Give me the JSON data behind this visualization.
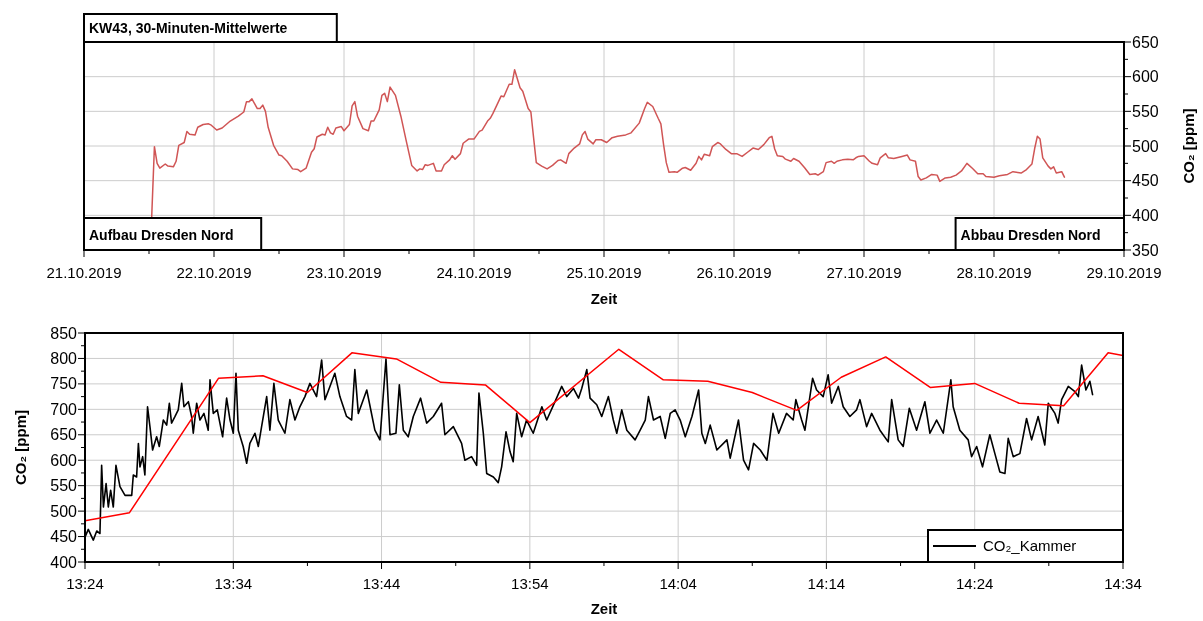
{
  "chart_data": [
    {
      "type": "line",
      "title": "KW43, 30-Minuten-Mittelwerte",
      "xlabel": "Zeit",
      "ylabel": "CO₂ [ppm]",
      "annotations": [
        "Aufbau Dresden Nord",
        "Abbau Dresden Nord"
      ],
      "color": "#d05555",
      "grid": true,
      "xlim": [
        "2019-10-21",
        "2019-10-29"
      ],
      "ylim": [
        350,
        650
      ],
      "xticks": [
        {
          "value": "2019-10-21",
          "label": "21.10.2019"
        },
        {
          "value": "2019-10-21T12:00",
          "label": null
        },
        {
          "value": "2019-10-22",
          "label": "22.10.2019"
        },
        {
          "value": "2019-10-22T12:00",
          "label": null
        },
        {
          "value": "2019-10-23",
          "label": "23.10.2019"
        },
        {
          "value": "2019-10-23T12:00",
          "label": null
        },
        {
          "value": "2019-10-24",
          "label": "24.10.2019"
        },
        {
          "value": "2019-10-24T12:00",
          "label": null
        },
        {
          "value": "2019-10-25",
          "label": "25.10.2019"
        },
        {
          "value": "2019-10-25T12:00",
          "label": null
        },
        {
          "value": "2019-10-26",
          "label": "26.10.2019"
        },
        {
          "value": "2019-10-26T12:00",
          "label": null
        },
        {
          "value": "2019-10-27",
          "label": "27.10.2019"
        },
        {
          "value": "2019-10-27T12:00",
          "label": null
        },
        {
          "value": "2019-10-28",
          "label": "28.10.2019"
        },
        {
          "value": "2019-10-28T12:00",
          "label": null
        },
        {
          "value": "2019-10-29",
          "label": "29.10.2019"
        }
      ],
      "yticks": [
        350,
        {
          "value": 375,
          "label": null
        },
        400,
        {
          "value": 425,
          "label": null
        },
        450,
        {
          "value": 475,
          "label": null
        },
        500,
        {
          "value": 525,
          "label": null
        },
        550,
        {
          "value": 575,
          "label": null
        },
        600,
        {
          "value": 625,
          "label": null
        },
        650
      ],
      "x": [
        "2019-10-21T12:30",
        "2019-10-21T13:00",
        "2019-10-21T13:30",
        "2019-10-21T14:00",
        "2019-10-21T15:00",
        "2019-10-21T15:30",
        "2019-10-21T16:30",
        "2019-10-21T17:00",
        "2019-10-21T17:30",
        "2019-10-21T18:30",
        "2019-10-21T19:00",
        "2019-10-21T19:30",
        "2019-10-21T20:30",
        "2019-10-21T21:00",
        "2019-10-21T22:00",
        "2019-10-21T23:00",
        "2019-10-21T23:30",
        "2019-10-22T00:30",
        "2019-10-22T01:30",
        "2019-10-22T03:00",
        "2019-10-22T04:30",
        "2019-10-22T05:30",
        "2019-10-22T06:00",
        "2019-10-22T06:30",
        "2019-10-22T07:00",
        "2019-10-22T08:00",
        "2019-10-22T08:30",
        "2019-10-22T09:00",
        "2019-10-22T09:30",
        "2019-10-22T10:00",
        "2019-10-22T11:00",
        "2019-10-22T12:00",
        "2019-10-22T12:30",
        "2019-10-22T13:30",
        "2019-10-22T14:30",
        "2019-10-22T15:30",
        "2019-10-22T16:00",
        "2019-10-22T17:00",
        "2019-10-22T18:00",
        "2019-10-22T18:30",
        "2019-10-22T19:00",
        "2019-10-22T20:00",
        "2019-10-22T20:30",
        "2019-10-22T21:00",
        "2019-10-22T21:30",
        "2019-10-22T22:00",
        "2019-10-22T22:30",
        "2019-10-22T23:30",
        "2019-10-23T00:00",
        "2019-10-23T01:00",
        "2019-10-23T01:30",
        "2019-10-23T02:00",
        "2019-10-23T02:30",
        "2019-10-23T03:30",
        "2019-10-23T04:30",
        "2019-10-23T05:00",
        "2019-10-23T05:30",
        "2019-10-23T06:30",
        "2019-10-23T07:00",
        "2019-10-23T07:30",
        "2019-10-23T08:00",
        "2019-10-23T08:30",
        "2019-10-23T09:30",
        "2019-10-23T10:30",
        "2019-10-23T11:30",
        "2019-10-23T12:30",
        "2019-10-23T13:30",
        "2019-10-23T14:00",
        "2019-10-23T14:30",
        "2019-10-23T15:00",
        "2019-10-23T15:30",
        "2019-10-23T16:30",
        "2019-10-23T17:00",
        "2019-10-23T18:00",
        "2019-10-23T18:30",
        "2019-10-23T19:30",
        "2019-10-23T20:00",
        "2019-10-23T20:30",
        "2019-10-23T21:30",
        "2019-10-23T22:00",
        "2019-10-23T23:00",
        "2019-10-24T00:00",
        "2019-10-24T01:00",
        "2019-10-24T01:30",
        "2019-10-24T02:30",
        "2019-10-24T03:00",
        "2019-10-24T03:30",
        "2019-10-24T05:00",
        "2019-10-24T05:30",
        "2019-10-24T06:30",
        "2019-10-24T07:00",
        "2019-10-24T07:30",
        "2019-10-24T08:30",
        "2019-10-24T09:00",
        "2019-10-24T10:00",
        "2019-10-24T10:30",
        "2019-10-24T11:00",
        "2019-10-24T11:30",
        "2019-10-24T12:30",
        "2019-10-24T13:30",
        "2019-10-24T14:30",
        "2019-10-24T15:30",
        "2019-10-24T16:00",
        "2019-10-24T17:00",
        "2019-10-24T17:30",
        "2019-10-24T18:30",
        "2019-10-24T19:30",
        "2019-10-24T20:00",
        "2019-10-24T20:30",
        "2019-10-24T21:00",
        "2019-10-24T22:00",
        "2019-10-24T22:30",
        "2019-10-24T23:30",
        "2019-10-25T00:30",
        "2019-10-25T01:30",
        "2019-10-25T02:30",
        "2019-10-25T04:00",
        "2019-10-25T05:00",
        "2019-10-25T06:30",
        "2019-10-25T07:30",
        "2019-10-25T08:00",
        "2019-10-25T09:00",
        "2019-10-25T10:00",
        "2019-10-25T10:30",
        "2019-10-25T11:00",
        "2019-10-25T11:30",
        "2019-10-25T12:00",
        "2019-10-25T13:00",
        "2019-10-25T13:30",
        "2019-10-25T14:30",
        "2019-10-25T15:00",
        "2019-10-25T16:00",
        "2019-10-25T17:00",
        "2019-10-25T17:30",
        "2019-10-25T18:00",
        "2019-10-25T18:30",
        "2019-10-25T19:30",
        "2019-10-25T20:00",
        "2019-10-25T21:00",
        "2019-10-25T21:30",
        "2019-10-25T22:30",
        "2019-10-25T23:30",
        "2019-10-26T00:30",
        "2019-10-26T01:30",
        "2019-10-26T02:30",
        "2019-10-26T03:30",
        "2019-10-26T04:30",
        "2019-10-26T05:30",
        "2019-10-26T06:30",
        "2019-10-26T07:00",
        "2019-10-26T07:30",
        "2019-10-26T08:00",
        "2019-10-26T09:00",
        "2019-10-26T09:30",
        "2019-10-26T10:30",
        "2019-10-26T11:00",
        "2019-10-26T12:00",
        "2019-10-26T13:00",
        "2019-10-26T14:00",
        "2019-10-26T15:00",
        "2019-10-26T15:30",
        "2019-10-26T16:30",
        "2019-10-26T17:00",
        "2019-10-26T18:00",
        "2019-10-26T18:30",
        "2019-10-26T19:00",
        "2019-10-26T20:00",
        "2019-10-26T21:00",
        "2019-10-26T22:00",
        "2019-10-26T22:30",
        "2019-10-26T23:00",
        "2019-10-27T00:00",
        "2019-10-27T01:00",
        "2019-10-27T01:30",
        "2019-10-27T02:30",
        "2019-10-27T03:00",
        "2019-10-27T04:00",
        "2019-10-27T04:30",
        "2019-10-27T05:30",
        "2019-10-27T07:00",
        "2019-10-27T08:00",
        "2019-10-27T08:30",
        "2019-10-27T09:30",
        "2019-10-27T10:00",
        "2019-10-27T10:30",
        "2019-10-27T11:30",
        "2019-10-27T12:30",
        "2019-10-27T13:30",
        "2019-10-27T14:00",
        "2019-10-27T15:00",
        "2019-10-27T16:00",
        "2019-10-27T17:00",
        "2019-10-27T18:00",
        "2019-10-27T19:00",
        "2019-10-27T20:00",
        "2019-10-27T21:00",
        "2019-10-27T22:00",
        "2019-10-27T22:30",
        "2019-10-28T00:00",
        "2019-10-28T01:00",
        "2019-10-28T02:30",
        "2019-10-28T03:30",
        "2019-10-28T05:00",
        "2019-10-28T06:00",
        "2019-10-28T07:00",
        "2019-10-28T07:30",
        "2019-10-28T08:00",
        "2019-10-28T08:30",
        "2019-10-28T09:00",
        "2019-10-28T10:00",
        "2019-10-28T10:30",
        "2019-10-28T11:00",
        "2019-10-28T11:30",
        "2019-10-28T12:30",
        "2019-10-28T13:00"
      ],
      "values": [
        398,
        499,
        475,
        468,
        474,
        471,
        470,
        478,
        501,
        505,
        521,
        517,
        516,
        527,
        531,
        532,
        530,
        523,
        526,
        536,
        543,
        549,
        564,
        564,
        568,
        554,
        554,
        559,
        550,
        527,
        501,
        487,
        486,
        478,
        467,
        466,
        463,
        468,
        491,
        496,
        513,
        517,
        516,
        527,
        519,
        517,
        526,
        528,
        522,
        531,
        558,
        564,
        543,
        525,
        522,
        536,
        536,
        552,
        573,
        576,
        564,
        585,
        573,
        543,
        507,
        472,
        464,
        467,
        466,
        473,
        472,
        475,
        464,
        464,
        473,
        480,
        486,
        481,
        489,
        504,
        510,
        510,
        521,
        523,
        536,
        540,
        547,
        572,
        571,
        589,
        589,
        610,
        584,
        579,
        554,
        549,
        512,
        476,
        471,
        467,
        472,
        479,
        480,
        475,
        489,
        497,
        503,
        516,
        521,
        510,
        503,
        509,
        509,
        505,
        512,
        514,
        516,
        519,
        533,
        554,
        563,
        557,
        540,
        532,
        502,
        476,
        462,
        463,
        462,
        468,
        469,
        465,
        475,
        485,
        480,
        488,
        486,
        499,
        505,
        503,
        495,
        489,
        489,
        485,
        491,
        497,
        495,
        502,
        512,
        514,
        496,
        486,
        485,
        481,
        478,
        482,
        478,
        469,
        459,
        460,
        458,
        463,
        476,
        478,
        475,
        478,
        480,
        481,
        480,
        483,
        485,
        486,
        478,
        475,
        473,
        483,
        489,
        483,
        482,
        485,
        487,
        480,
        478,
        456,
        451,
        454,
        459,
        458,
        449,
        454,
        455,
        458,
        464,
        475,
        468,
        460,
        460,
        456,
        455,
        457,
        459,
        463,
        461,
        466,
        474,
        496,
        514,
        510,
        483,
        471,
        467,
        470,
        461,
        463,
        455
      ]
    },
    {
      "type": "line",
      "xlabel": "Zeit",
      "ylabel": "CO₂ [ppm]",
      "grid": true,
      "legend": "bottom right",
      "xlim": [
        13.4,
        14.5667
      ],
      "ylim": [
        400,
        850
      ],
      "xticks": [
        {
          "value": 13.4,
          "label": "13:24"
        },
        {
          "value": 13.4833,
          "label": null
        },
        {
          "value": 13.5667,
          "label": "13:34"
        },
        {
          "value": 13.65,
          "label": null
        },
        {
          "value": 13.7333,
          "label": "13:44"
        },
        {
          "value": 13.8167,
          "label": null
        },
        {
          "value": 13.9,
          "label": "13:54"
        },
        {
          "value": 13.9833,
          "label": null
        },
        {
          "value": 14.0667,
          "label": "14:04"
        },
        {
          "value": 14.15,
          "label": null
        },
        {
          "value": 14.2333,
          "label": "14:14"
        },
        {
          "value": 14.3167,
          "label": null
        },
        {
          "value": 14.4,
          "label": "14:24"
        },
        {
          "value": 14.4833,
          "label": null
        },
        {
          "value": 14.5667,
          "label": "14:34"
        }
      ],
      "yticks": [
        400,
        {
          "value": 425,
          "label": null
        },
        450,
        {
          "value": 475,
          "label": null
        },
        500,
        {
          "value": 525,
          "label": null
        },
        550,
        {
          "value": 575,
          "label": null
        },
        600,
        {
          "value": 625,
          "label": null
        },
        650,
        {
          "value": 675,
          "label": null
        },
        700,
        {
          "value": 725,
          "label": null
        },
        750,
        {
          "value": 775,
          "label": null
        },
        800,
        {
          "value": 825,
          "label": null
        },
        850
      ],
      "series": [
        {
          "name": "CO₂_Kammer",
          "color": "#000000",
          "x": [
            13.4,
            13.4037,
            13.4093,
            13.4132,
            13.4168,
            13.4187,
            13.4207,
            13.4237,
            13.4262,
            13.4288,
            13.4318,
            13.4348,
            13.4393,
            13.445,
            13.4525,
            13.4543,
            13.458,
            13.46,
            13.4618,
            13.4648,
            13.4673,
            13.4703,
            13.473,
            13.476,
            13.4805,
            13.4835,
            13.488,
            13.4918,
            13.4948,
            13.4973,
            13.5012,
            13.5048,
            13.5087,
            13.5112,
            13.5162,
            13.5198,
            13.5217,
            13.5255,
            13.5292,
            13.5337,
            13.5385,
            13.5405,
            13.5442,
            13.5487,
            13.5547,
            13.5592,
            13.563,
            13.5667,
            13.5697,
            13.5723,
            13.5778,
            13.5817,
            13.5853,
            13.591,
            13.5948,
            13.5985,
            13.6042,
            13.6078,
            13.6123,
            13.6172,
            13.6247,
            13.6303,
            13.636,
            13.6415,
            13.6472,
            13.6528,
            13.6603,
            13.666,
            13.6697,
            13.6753,
            13.6808,
            13.6865,
            13.694,
            13.6997,
            13.7033,
            13.7072,
            13.7167,
            13.7258,
            13.7315,
            13.7383,
            13.7428,
            13.7495,
            13.7533,
            13.7578,
            13.7633,
            13.769,
            13.7772,
            13.784,
            13.7915,
            13.8008,
            13.8045,
            13.814,
            13.8233,
            13.827,
            13.8345,
            13.8402,
            13.8428,
            13.8477,
            13.8515,
            13.859,
            13.8645,
            13.8683,
            13.8732,
            13.8777,
            13.8813,
            13.8852,
            13.8908,
            13.8963,
            13.9038,
            13.9135,
            13.919,
            13.9283,
            13.9358,
            13.9415,
            13.949,
            13.9547,
            13.9583,
            13.964,
            13.9677,
            13.9752,
            13.9808,
            13.9883,
            13.9938,
            13.9977,
            14.0033,
            14.009,
            14.0183,
            14.024,
            14.0297,
            14.0333,
            14.039,
            14.0465,
            14.0522,
            14.0578,
            14.0633,
            14.069,
            14.0747,
            14.0822,
            14.0897,
            14.0933,
            14.0972,
            14.1027,
            14.1102,
            14.1215,
            14.1252,
            14.1345,
            14.1402,
            14.1458,
            14.1515,
            14.159,
            14.1665,
            14.1733,
            14.1797,
            14.1885,
            14.196,
            14.199,
            14.2055,
            14.2092,
            14.2178,
            14.2223,
            14.2297,
            14.2353,
            14.2392,
            14.2467,
            14.2522,
            14.2597,
            14.2673,
            14.271,
            14.2785,
            14.2842,
            14.2935,
            14.3028,
            14.3067,
            14.314,
            14.3197,
            14.3265,
            14.3347,
            14.344,
            14.3497,
            14.3572,
            14.3647,
            14.3732,
            14.3758,
            14.3833,
            14.3927,
            14.3965,
            14.4022,
            14.4088,
            14.417,
            14.4227,
            14.4283,
            14.434,
            14.4377,
            14.4433,
            14.4508,
            14.4583,
            14.464,
            14.4713,
            14.4788,
            14.4827,
            14.4902,
            14.4938,
            14.4977,
            14.5052,
            14.5127,
            14.5165,
            14.5202,
            14.525,
            14.5295,
            14.5325
          ],
          "values": [
            449,
            464,
            443,
            461,
            456,
            590,
            508,
            554,
            508,
            541,
            508,
            590,
            548,
            531,
            531,
            571,
            567,
            633,
            587,
            607,
            571,
            705,
            666,
            620,
            646,
            627,
            679,
            669,
            712,
            673,
            686,
            699,
            751,
            705,
            715,
            686,
            653,
            712,
            679,
            692,
            659,
            758,
            692,
            699,
            646,
            722,
            679,
            653,
            771,
            659,
            627,
            594,
            633,
            653,
            627,
            666,
            725,
            659,
            751,
            679,
            653,
            719,
            679,
            705,
            725,
            751,
            725,
            797,
            719,
            745,
            771,
            725,
            686,
            679,
            778,
            692,
            738,
            659,
            640,
            799,
            650,
            653,
            748,
            659,
            646,
            686,
            722,
            673,
            686,
            712,
            650,
            666,
            633,
            600,
            607,
            590,
            732,
            653,
            574,
            567,
            556,
            587,
            656,
            617,
            597,
            692,
            646,
            679,
            653,
            705,
            679,
            715,
            745,
            725,
            741,
            722,
            741,
            778,
            722,
            709,
            686,
            725,
            679,
            653,
            699,
            659,
            640,
            659,
            679,
            725,
            679,
            686,
            643,
            692,
            699,
            679,
            646,
            686,
            738,
            653,
            633,
            669,
            620,
            640,
            604,
            679,
            600,
            581,
            633,
            620,
            600,
            692,
            653,
            692,
            679,
            719,
            679,
            659,
            761,
            738,
            725,
            768,
            712,
            745,
            705,
            686,
            699,
            719,
            666,
            692,
            659,
            636,
            719,
            640,
            627,
            702,
            659,
            715,
            653,
            679,
            653,
            758,
            705,
            659,
            640,
            607,
            627,
            587,
            650,
            613,
            577,
            574,
            643,
            607,
            613,
            682,
            640,
            686,
            630,
            712,
            692,
            673,
            719,
            745,
            735,
            725,
            787,
            738,
            755,
            729
          ]
        },
        {
          "color": "#ff0000",
          "x": [
            13.4,
            13.45,
            13.55,
            13.6,
            13.65,
            13.7,
            13.75,
            13.8,
            13.85,
            13.9,
            14.0,
            14.05,
            14.1,
            14.15,
            14.2,
            14.25,
            14.3,
            14.35,
            14.4,
            14.45,
            14.5,
            14.55,
            14.5667
          ],
          "values": [
            481,
            497,
            761,
            766,
            733,
            811,
            799,
            753,
            748,
            674,
            818,
            758,
            755,
            733,
            698,
            763,
            803,
            743,
            751,
            712,
            707,
            811,
            806
          ]
        }
      ]
    }
  ]
}
